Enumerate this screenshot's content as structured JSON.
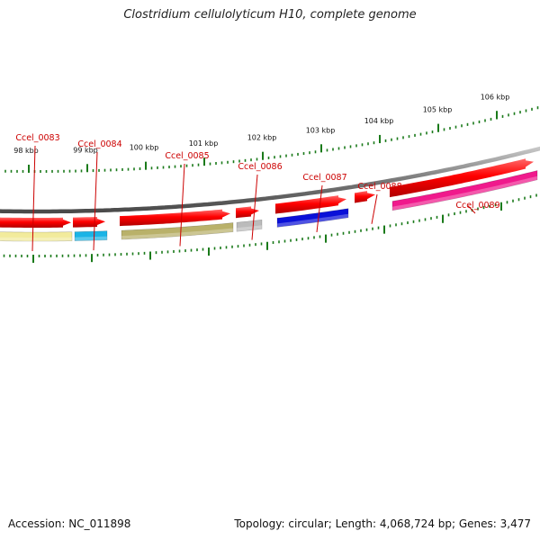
{
  "title": "Clostridium cellulolyticum H10, complete genome",
  "footer": {
    "accession": "Accession: NC_011898",
    "topology": "Topology: circular; Length: 4,068,724 bp; Genes: 3,477"
  },
  "genes": [
    {
      "label": "Ccel_0083",
      "color": "#f2eb9c"
    },
    {
      "label": "Ccel_0084",
      "color": "#1ab4e6"
    },
    {
      "label": "Ccel_0085",
      "color": "#b9b16a"
    },
    {
      "label": "Ccel_0086",
      "color": "#bbbbbb"
    },
    {
      "label": "Ccel_0087",
      "color": "#0a10d8"
    },
    {
      "label": "Ccel_0088",
      "color": ""
    },
    {
      "label": "Ccel_0089",
      "color": "#f0198c"
    }
  ],
  "scale_labels": [
    "98 kbp",
    "99 kbp",
    "100 kbp",
    "101 kbp",
    "102 kbp",
    "103 kbp",
    "104 kbp",
    "105 kbp",
    "106 kbp"
  ],
  "colors": {
    "cds_red": "#ff0000",
    "gene_label": "#cc0000",
    "tick": "#1a7a1a",
    "backbone": "#7a7a7a"
  }
}
